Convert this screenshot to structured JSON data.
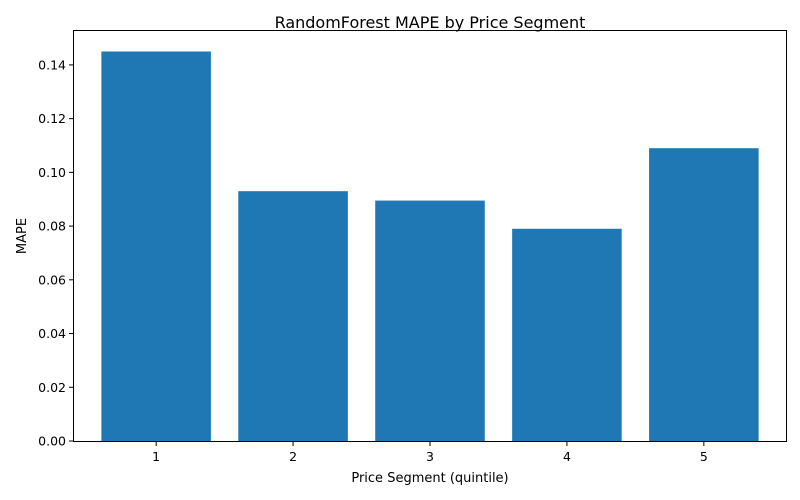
{
  "chart_data": {
    "type": "bar",
    "title": "RandomForest MAPE by Price Segment",
    "xlabel": "Price Segment (quintile)",
    "ylabel": "MAPE",
    "categories": [
      "1",
      "2",
      "3",
      "4",
      "5"
    ],
    "values": [
      0.145,
      0.093,
      0.0895,
      0.079,
      0.109
    ],
    "ylim": [
      0,
      0.153
    ],
    "yticks": [
      0.0,
      0.02,
      0.04,
      0.06,
      0.08,
      0.1,
      0.12,
      0.14
    ],
    "ytick_labels": [
      "0.00",
      "0.02",
      "0.04",
      "0.06",
      "0.08",
      "0.10",
      "0.12",
      "0.14"
    ],
    "grid": false,
    "bar_color": "#1f77b4"
  }
}
